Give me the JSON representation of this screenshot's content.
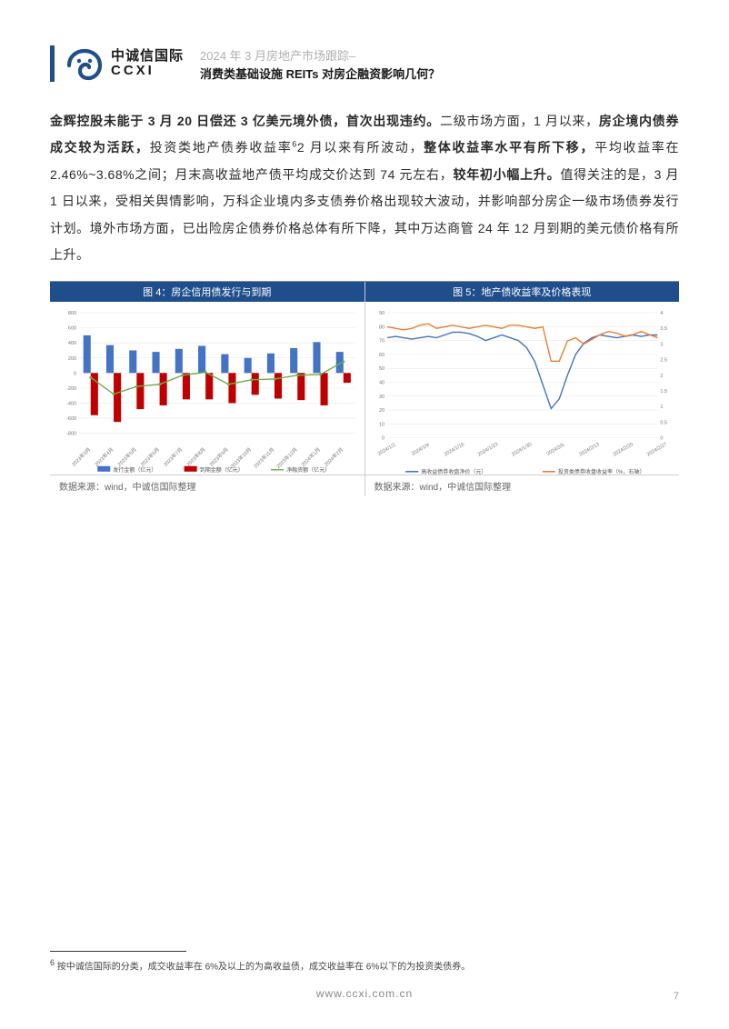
{
  "header": {
    "logo_cn": "中诚信国际",
    "logo_en": "CCXI",
    "line1_gray": "2024 年 3 月房地产市场跟踪–",
    "line2_black": "消费类基础设施 REITs 对房企融资影响几何？"
  },
  "paragraph": {
    "s1_bold": "金辉控股未能于 3 月 20 日偿还 3 亿美元境外债，首次出现违约。",
    "s2": "二级市场方面，1 月以来，",
    "s3_bold": "房企境内债券成交较为活跃，",
    "s4": "投资类地产债券收益率",
    "s4_sup": "6",
    "s5": "2 月以来有所波动，",
    "s6_bold": "整体收益率水平有所下移，",
    "s7": "平均收益率在 2.46%~3.68%之间；月末高收益地产债平均成交价达到 74 元左右，",
    "s8_bold": "较年初小幅上升。",
    "s9": "值得关注的是，3 月 1 日以来，受相关舆情影响，万科企业境内多支债券价格出现较大波动，并影响部分房企一级市场债券发行计划。境外市场方面，已出险房企债券价格总体有所下降，其中万达商管 24 年 12 月到期的美元债价格有所上升。"
  },
  "chart4": {
    "title": "图 4：房企信用债发行与到期",
    "source": "数据来源：wind，中诚信国际整理",
    "type": "grouped-bar-with-line",
    "x_labels": [
      "2023年3月",
      "2023年4月",
      "2023年5月",
      "2023年6月",
      "2023年7月",
      "2023年8月",
      "2023年9月",
      "2023年10月",
      "2023年11月",
      "2023年12月",
      "2024年1月",
      "2024年2月"
    ],
    "y_ticks": [
      -800,
      -600,
      -400,
      -200,
      0,
      200,
      400,
      600,
      800
    ],
    "ylim": [
      -800,
      800
    ],
    "series": [
      {
        "name": "发行金额（亿元）",
        "color": "#4472c4",
        "type": "bar",
        "values": [
          500,
          370,
          300,
          280,
          320,
          360,
          250,
          200,
          260,
          330,
          410,
          280
        ]
      },
      {
        "name": "到期金额（亿元）",
        "color": "#c00000",
        "type": "bar",
        "values": [
          -560,
          -650,
          -480,
          -430,
          -350,
          -350,
          -400,
          -290,
          -340,
          -360,
          -430,
          -130
        ]
      },
      {
        "name": "净融资额（亿元）",
        "color": "#70ad47",
        "type": "line",
        "values": [
          -60,
          -280,
          -180,
          -150,
          -30,
          10,
          -150,
          -90,
          -80,
          -30,
          -20,
          150
        ]
      }
    ],
    "grid_color": "#e6e6e6",
    "background_color": "#ffffff",
    "bar_width": 0.32
  },
  "chart5": {
    "title": "图 5：地产债收益率及价格表现",
    "source": "数据来源：wind，中诚信国际整理",
    "type": "dual-axis-line",
    "x_labels": [
      "2024/1/2",
      "2024/1/9",
      "2024/1/16",
      "2024/1/23",
      "2024/1/30",
      "2024/2/6",
      "2024/2/13",
      "2024/2/20",
      "2024/2/27"
    ],
    "y_left_ticks": [
      0,
      10,
      20,
      30,
      40,
      50,
      60,
      70,
      80,
      90
    ],
    "y_left_lim": [
      0,
      90
    ],
    "y_right_ticks": [
      0,
      0.5,
      1,
      1.5,
      2,
      2.5,
      3,
      3.5,
      4
    ],
    "y_right_lim": [
      0,
      4
    ],
    "series": [
      {
        "name": "高收益债券收盘净价（元）",
        "color": "#4472c4",
        "axis": "left",
        "values": [
          72,
          73,
          72,
          71,
          72,
          73,
          72,
          74,
          76,
          76,
          75,
          73,
          70,
          72,
          74,
          72,
          70,
          65,
          55,
          38,
          21,
          28,
          45,
          60,
          68,
          72,
          74,
          73,
          72,
          73,
          74,
          73,
          74,
          74
        ]
      },
      {
        "name": "投资类债券收盘收益率（%，右轴）",
        "color": "#ed7d31",
        "axis": "right",
        "values": [
          3.55,
          3.5,
          3.45,
          3.5,
          3.6,
          3.65,
          3.5,
          3.55,
          3.6,
          3.55,
          3.5,
          3.55,
          3.6,
          3.55,
          3.5,
          3.6,
          3.6,
          3.55,
          3.5,
          3.55,
          2.45,
          2.45,
          3.1,
          3.2,
          3.0,
          3.15,
          3.3,
          3.4,
          3.35,
          3.25,
          3.3,
          3.4,
          3.3,
          3.2
        ]
      }
    ],
    "grid_color": "#e6e6e6",
    "background_color": "#ffffff"
  },
  "footnote": {
    "marker": "6",
    "text": " 按中诚信国际的分类，成交收益率在 6%及以上的为高收益债，成交收益率在 6%以下的为投资类债券。"
  },
  "footer": {
    "url": "www.ccxi.com.cn",
    "page": "7"
  }
}
